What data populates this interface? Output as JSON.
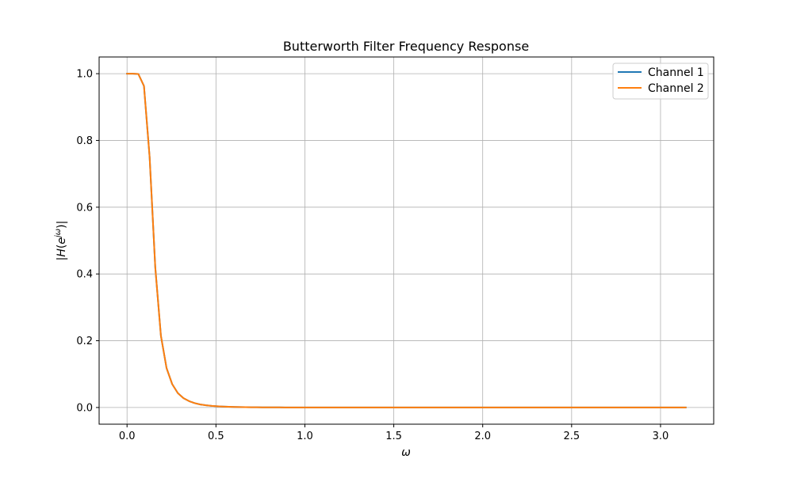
{
  "chart_data": {
    "type": "line",
    "title": "Butterworth Filter Frequency Response",
    "xlabel": "ω",
    "ylabel": "|H(e^{jω})|",
    "ylabel_parts": {
      "left": "|",
      "H": "H",
      "open": "(",
      "e": "e",
      "sup": "jω",
      "close": ")",
      "right": "|"
    },
    "xlim": [
      -0.157,
      3.299
    ],
    "ylim": [
      -0.05,
      1.05
    ],
    "xticks": [
      0.0,
      0.5,
      1.0,
      1.5,
      2.0,
      2.5,
      3.0
    ],
    "xtick_labels": [
      "0.0",
      "0.5",
      "1.0",
      "1.5",
      "2.0",
      "2.5",
      "3.0"
    ],
    "yticks": [
      0.0,
      0.2,
      0.4,
      0.6,
      0.8,
      1.0
    ],
    "ytick_labels": [
      "0.0",
      "0.2",
      "0.4",
      "0.6",
      "0.8",
      "1.0"
    ],
    "grid": true,
    "legend_position": "top-right",
    "series": [
      {
        "name": "Channel 1",
        "color": "#1f77b4",
        "x": [
          0.0,
          0.0317,
          0.0635,
          0.0952,
          0.127,
          0.1587,
          0.1904,
          0.2222,
          0.2539,
          0.2856,
          0.3174,
          0.3491,
          0.3808,
          0.4126,
          0.4443,
          0.476,
          0.5078,
          0.5395,
          0.5712,
          0.603,
          0.6347,
          0.6664,
          0.6982,
          0.7299,
          0.7616,
          0.7934,
          0.8251,
          0.8568,
          0.8886,
          0.9203,
          0.952,
          1.0,
          1.2,
          1.5,
          2.0,
          2.5,
          3.0,
          3.1416
        ],
        "y": [
          1.0,
          1.0,
          0.999,
          0.963,
          0.75,
          0.42,
          0.215,
          0.118,
          0.07,
          0.043,
          0.028,
          0.019,
          0.013,
          0.009,
          0.0065,
          0.0048,
          0.0036,
          0.0027,
          0.0021,
          0.0016,
          0.0013,
          0.001,
          0.0008,
          0.0006,
          0.0005,
          0.0004,
          0.0003,
          0.0003,
          0.0002,
          0.0002,
          0.0002,
          0.0001,
          0.0,
          0.0,
          0.0,
          0.0,
          0.0,
          0.0
        ]
      },
      {
        "name": "Channel 2",
        "color": "#ff7f0e",
        "x": [
          0.0,
          0.0317,
          0.0635,
          0.0952,
          0.127,
          0.1587,
          0.1904,
          0.2222,
          0.2539,
          0.2856,
          0.3174,
          0.3491,
          0.3808,
          0.4126,
          0.4443,
          0.476,
          0.5078,
          0.5395,
          0.5712,
          0.603,
          0.6347,
          0.6664,
          0.6982,
          0.7299,
          0.7616,
          0.7934,
          0.8251,
          0.8568,
          0.8886,
          0.9203,
          0.952,
          1.0,
          1.2,
          1.5,
          2.0,
          2.5,
          3.0,
          3.1416
        ],
        "y": [
          1.0,
          1.0,
          0.999,
          0.963,
          0.75,
          0.42,
          0.215,
          0.118,
          0.07,
          0.043,
          0.028,
          0.019,
          0.013,
          0.009,
          0.0065,
          0.0048,
          0.0036,
          0.0027,
          0.0021,
          0.0016,
          0.0013,
          0.001,
          0.0008,
          0.0006,
          0.0005,
          0.0004,
          0.0003,
          0.0003,
          0.0002,
          0.0002,
          0.0002,
          0.0001,
          0.0,
          0.0,
          0.0,
          0.0,
          0.0,
          0.0
        ]
      }
    ]
  }
}
